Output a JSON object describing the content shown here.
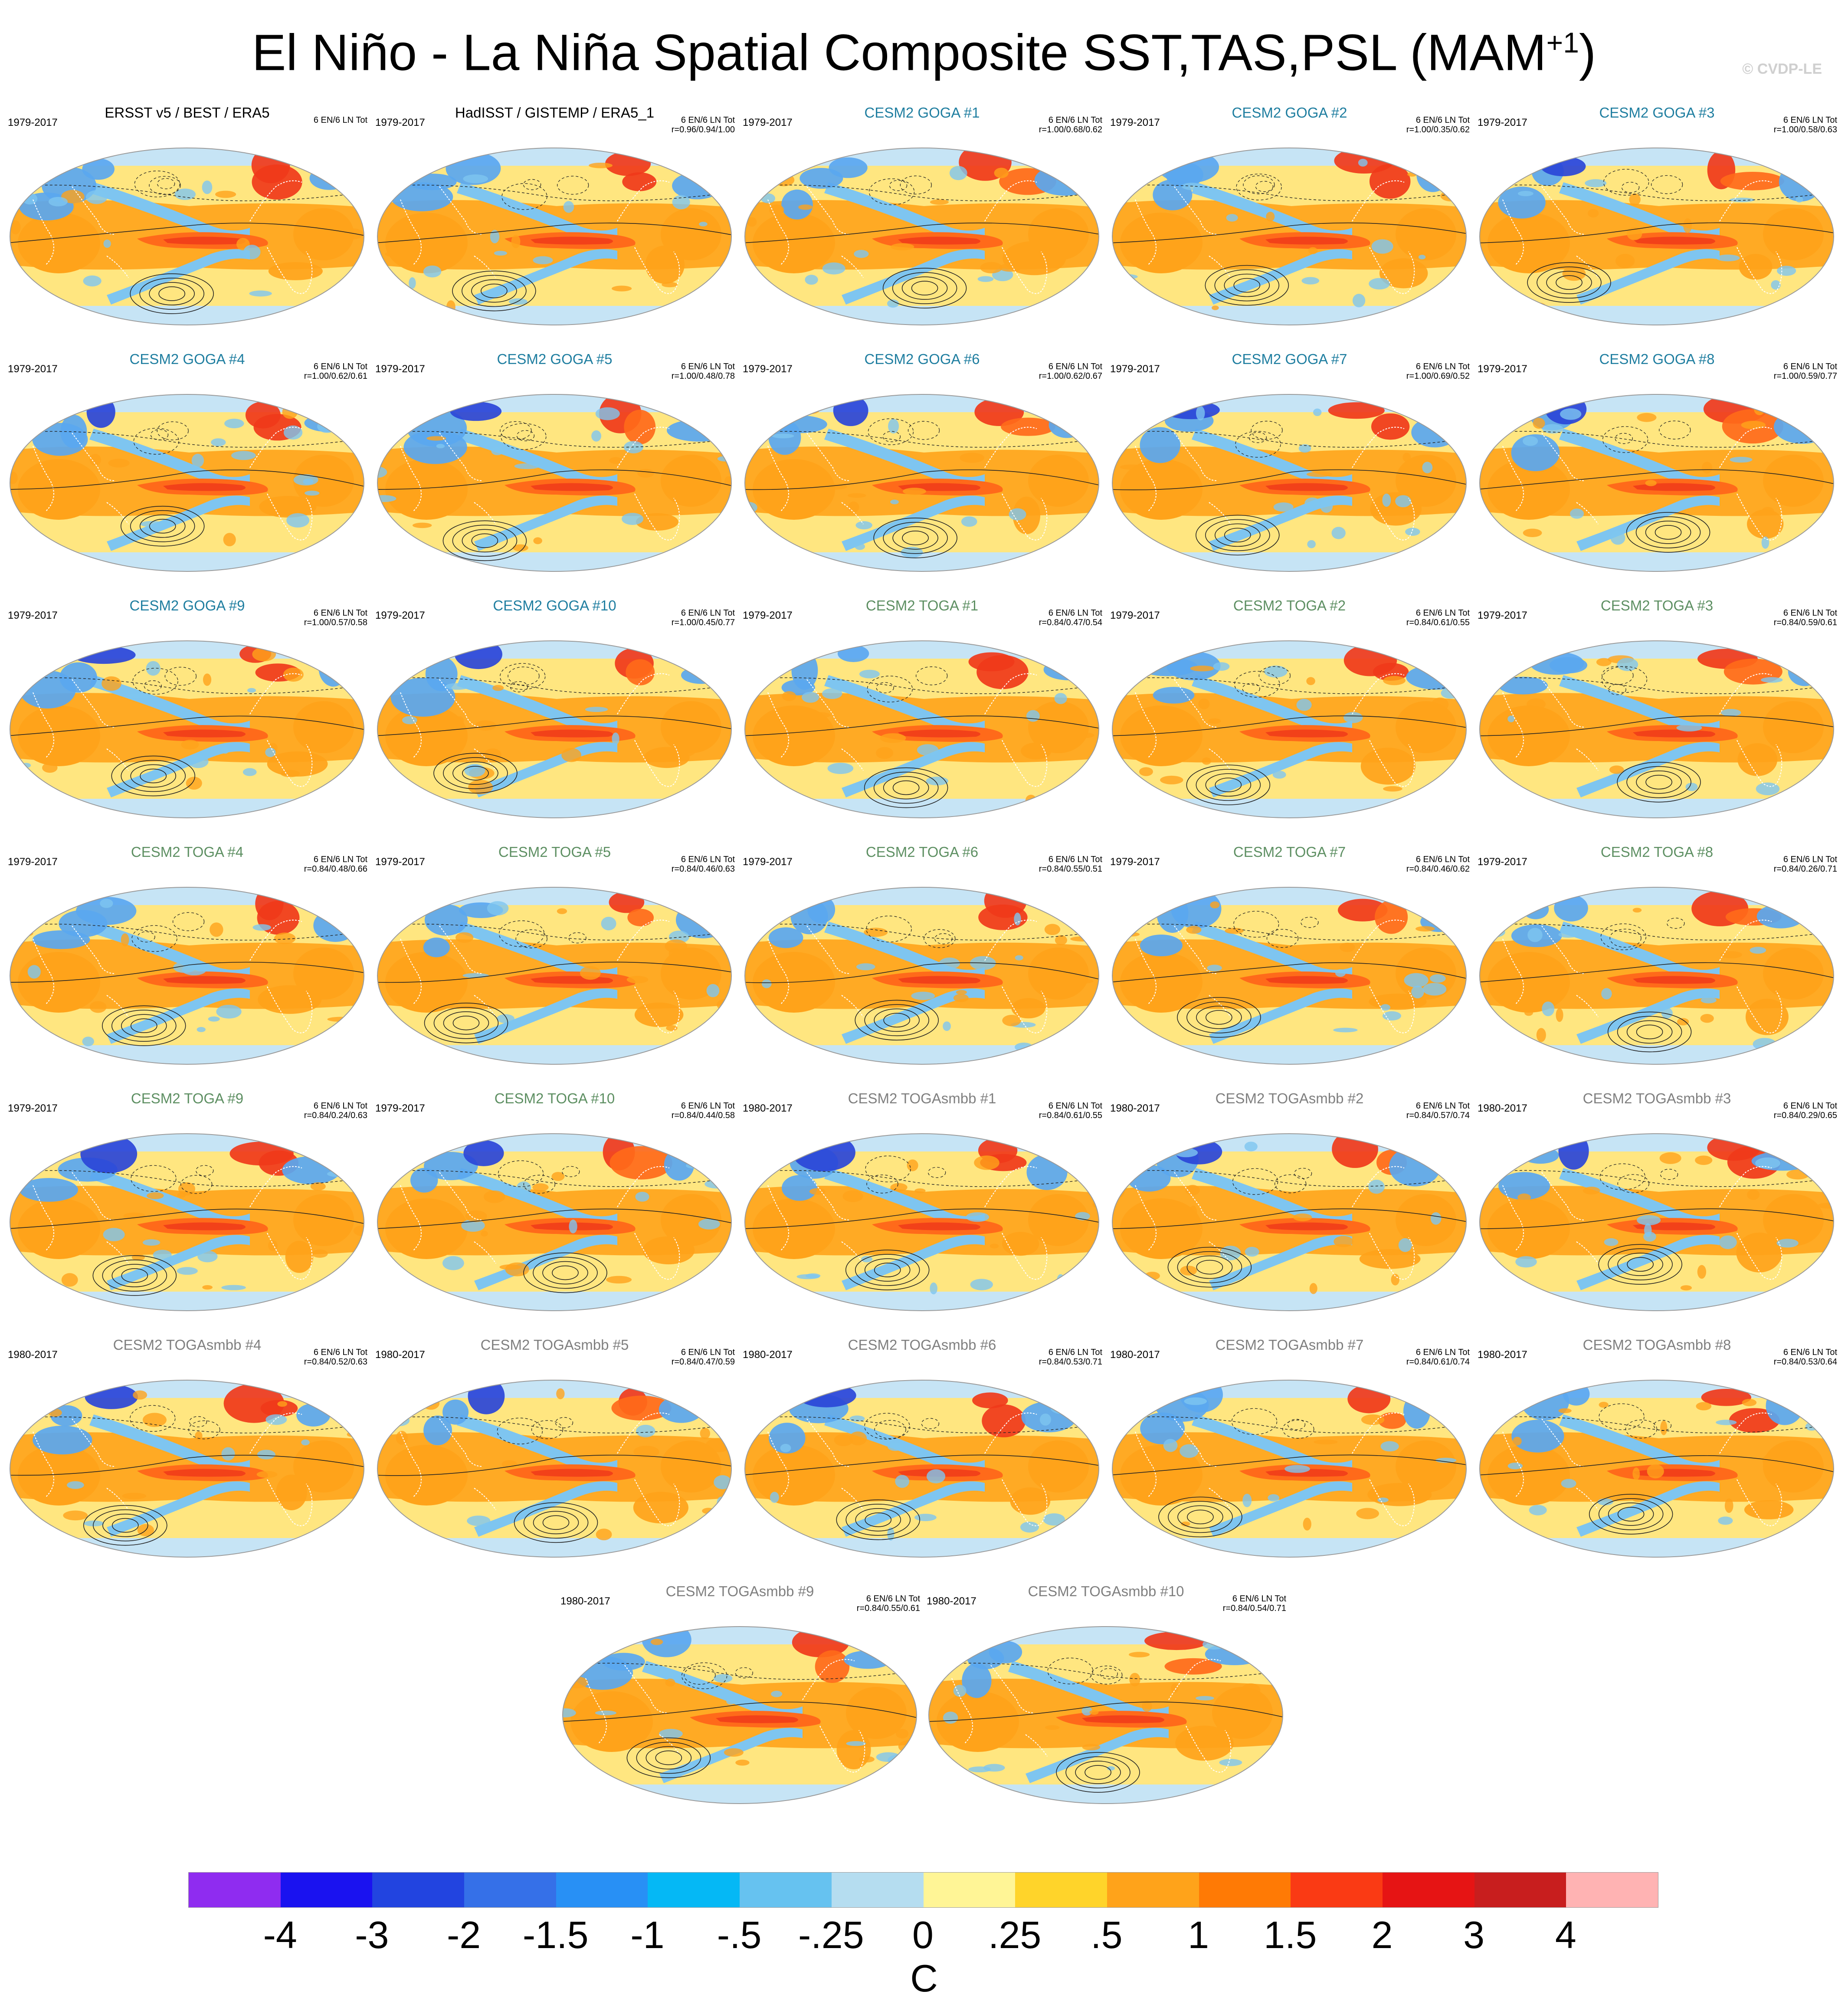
{
  "title": {
    "main": "El Niño - La Niña Spatial Composite SST,TAS,PSL (MAM",
    "superscript": "+1",
    "close": ")"
  },
  "watermark": "© CVDP-LE",
  "stats_label": "6 EN/6 LN Tot",
  "panels": [
    {
      "title": "ERSST v5 / BEST / ERA5",
      "kind": "obs",
      "years": "1979-2017",
      "r": ""
    },
    {
      "title": "HadISST / GISTEMP / ERA5_1",
      "kind": "obs",
      "years": "1979-2017",
      "r": "r=0.96/0.94/1.00"
    },
    {
      "title": "CESM2 GOGA #1",
      "kind": "goga",
      "years": "1979-2017",
      "r": "r=1.00/0.68/0.62"
    },
    {
      "title": "CESM2 GOGA #2",
      "kind": "goga",
      "years": "1979-2017",
      "r": "r=1.00/0.35/0.62"
    },
    {
      "title": "CESM2 GOGA #3",
      "kind": "goga",
      "years": "1979-2017",
      "r": "r=1.00/0.58/0.63"
    },
    {
      "title": "CESM2 GOGA #4",
      "kind": "goga",
      "years": "1979-2017",
      "r": "r=1.00/0.62/0.61"
    },
    {
      "title": "CESM2 GOGA #5",
      "kind": "goga",
      "years": "1979-2017",
      "r": "r=1.00/0.48/0.78"
    },
    {
      "title": "CESM2 GOGA #6",
      "kind": "goga",
      "years": "1979-2017",
      "r": "r=1.00/0.62/0.67"
    },
    {
      "title": "CESM2 GOGA #7",
      "kind": "goga",
      "years": "1979-2017",
      "r": "r=1.00/0.69/0.52"
    },
    {
      "title": "CESM2 GOGA #8",
      "kind": "goga",
      "years": "1979-2017",
      "r": "r=1.00/0.59/0.77"
    },
    {
      "title": "CESM2 GOGA #9",
      "kind": "goga",
      "years": "1979-2017",
      "r": "r=1.00/0.57/0.58"
    },
    {
      "title": "CESM2 GOGA #10",
      "kind": "goga",
      "years": "1979-2017",
      "r": "r=1.00/0.45/0.77"
    },
    {
      "title": "CESM2 TOGA #1",
      "kind": "toga",
      "years": "1979-2017",
      "r": "r=0.84/0.47/0.54"
    },
    {
      "title": "CESM2 TOGA #2",
      "kind": "toga",
      "years": "1979-2017",
      "r": "r=0.84/0.61/0.55"
    },
    {
      "title": "CESM2 TOGA #3",
      "kind": "toga",
      "years": "1979-2017",
      "r": "r=0.84/0.59/0.61"
    },
    {
      "title": "CESM2 TOGA #4",
      "kind": "toga",
      "years": "1979-2017",
      "r": "r=0.84/0.48/0.66"
    },
    {
      "title": "CESM2 TOGA #5",
      "kind": "toga",
      "years": "1979-2017",
      "r": "r=0.84/0.46/0.63"
    },
    {
      "title": "CESM2 TOGA #6",
      "kind": "toga",
      "years": "1979-2017",
      "r": "r=0.84/0.55/0.51"
    },
    {
      "title": "CESM2 TOGA #7",
      "kind": "toga",
      "years": "1979-2017",
      "r": "r=0.84/0.46/0.62"
    },
    {
      "title": "CESM2 TOGA #8",
      "kind": "toga",
      "years": "1979-2017",
      "r": "r=0.84/0.26/0.71"
    },
    {
      "title": "CESM2 TOGA #9",
      "kind": "toga",
      "years": "1979-2017",
      "r": "r=0.84/0.24/0.63"
    },
    {
      "title": "CESM2 TOGA #10",
      "kind": "toga",
      "years": "1979-2017",
      "r": "r=0.84/0.44/0.58"
    },
    {
      "title": "CESM2 TOGAsmbb #1",
      "kind": "smbb",
      "years": "1980-2017",
      "r": "r=0.84/0.61/0.55"
    },
    {
      "title": "CESM2 TOGAsmbb #2",
      "kind": "smbb",
      "years": "1980-2017",
      "r": "r=0.84/0.57/0.74"
    },
    {
      "title": "CESM2 TOGAsmbb #3",
      "kind": "smbb",
      "years": "1980-2017",
      "r": "r=0.84/0.29/0.65"
    },
    {
      "title": "CESM2 TOGAsmbb #4",
      "kind": "smbb",
      "years": "1980-2017",
      "r": "r=0.84/0.52/0.63"
    },
    {
      "title": "CESM2 TOGAsmbb #5",
      "kind": "smbb",
      "years": "1980-2017",
      "r": "r=0.84/0.47/0.59"
    },
    {
      "title": "CESM2 TOGAsmbb #6",
      "kind": "smbb",
      "years": "1980-2017",
      "r": "r=0.84/0.53/0.71"
    },
    {
      "title": "CESM2 TOGAsmbb #7",
      "kind": "smbb",
      "years": "1980-2017",
      "r": "r=0.84/0.61/0.74"
    },
    {
      "title": "CESM2 TOGAsmbb #8",
      "kind": "smbb",
      "years": "1980-2017",
      "r": "r=0.84/0.53/0.64"
    },
    {
      "title": "CESM2 TOGAsmbb #9",
      "kind": "smbb",
      "years": "1980-2017",
      "r": "r=0.84/0.55/0.61"
    },
    {
      "title": "CESM2 TOGAsmbb #10",
      "kind": "smbb",
      "years": "1980-2017",
      "r": "r=0.84/0.54/0.71"
    }
  ],
  "title_colors": {
    "obs": "#000000",
    "goga": "#1f7ea0",
    "toga": "#5d8f62",
    "smbb": "#7f7f7f"
  },
  "map_colors": {
    "ocean_base": "#ffe680",
    "enso_warm": "#ffa31a",
    "enso_core": "#ff6a1a",
    "horseshoe_cool": "#7ec5f0",
    "land_cool": "#5aa7f0",
    "land_warm": "#f03a1a",
    "land_strong_cold": "#2a45d8",
    "polar": "#c6e4f5",
    "contour": "#222222",
    "coast": "#ffffff"
  },
  "colorbar": {
    "colors": [
      "#8f2cf0",
      "#1a12f0",
      "#2244e0",
      "#3570e8",
      "#2890f5",
      "#05b8f5",
      "#66c2f0",
      "#b5ddf0",
      "#fff596",
      "#ffd42a",
      "#ffa31a",
      "#ff7a05",
      "#fa3a14",
      "#e61414",
      "#c81e1e",
      "#ffb3b3"
    ],
    "labels": [
      "-4",
      "-3",
      "-2",
      "-1.5",
      "-1",
      "-.5",
      "-.25",
      "0",
      ".25",
      ".5",
      "1",
      "1.5",
      "2",
      "3",
      "4"
    ],
    "unit": "C"
  }
}
